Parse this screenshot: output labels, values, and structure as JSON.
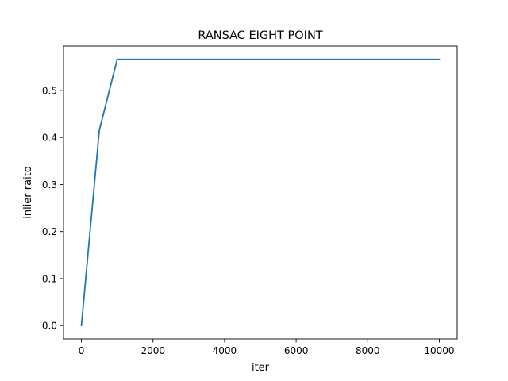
{
  "chart_data": {
    "type": "line",
    "title": "RANSAC EIGHT POINT",
    "xlabel": "iter",
    "ylabel": "inlier raito",
    "xlim": [
      -500,
      10500
    ],
    "ylim": [
      -0.0283,
      0.5943
    ],
    "xticks": [
      0,
      2000,
      4000,
      6000,
      8000,
      10000
    ],
    "xtick_labels": [
      "0",
      "2000",
      "4000",
      "6000",
      "8000",
      "10000"
    ],
    "yticks": [
      0.0,
      0.1,
      0.2,
      0.3,
      0.4,
      0.5
    ],
    "ytick_labels": [
      "0.0",
      "0.1",
      "0.2",
      "0.3",
      "0.4",
      "0.5"
    ],
    "grid": false,
    "series": [
      {
        "color": "#1f77b4",
        "x": [
          0,
          500,
          1000,
          10000
        ],
        "y": [
          0.0,
          0.415,
          0.566,
          0.566
        ]
      }
    ]
  }
}
